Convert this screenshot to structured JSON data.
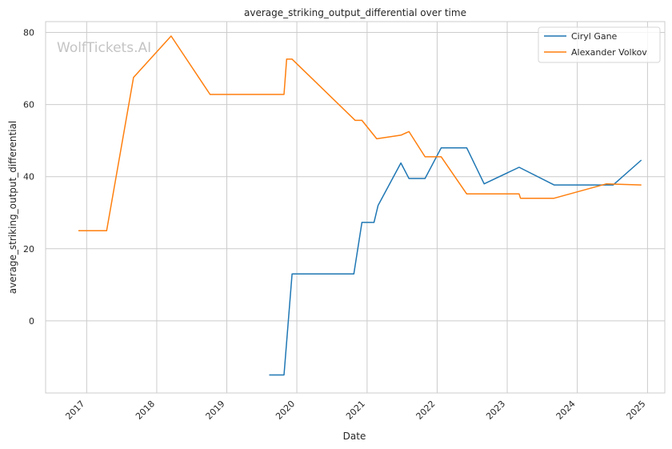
{
  "watermark": "WolfTickets.AI",
  "chart_data": {
    "type": "line",
    "title": "average_striking_output_differential over time",
    "xlabel": "Date",
    "ylabel": "average_striking_output_differential",
    "x_ticks": [
      "2017",
      "2018",
      "2019",
      "2020",
      "2021",
      "2022",
      "2023",
      "2024",
      "2025"
    ],
    "y_ticks": [
      0,
      20,
      40,
      60,
      80
    ],
    "xlim": [
      "2016-06-01",
      "2025-04-01"
    ],
    "ylim": [
      -20,
      83
    ],
    "grid": true,
    "legend_position": "top-right",
    "series": [
      {
        "name": "Ciryl Gane",
        "color": "#1f77b4",
        "points": [
          [
            "2019-08-10",
            -15
          ],
          [
            "2019-10-26",
            -15
          ],
          [
            "2019-12-07",
            13
          ],
          [
            "2020-10-24",
            13
          ],
          [
            "2020-12-05",
            27.3
          ],
          [
            "2021-02-06",
            27.3
          ],
          [
            "2021-02-27",
            32
          ],
          [
            "2021-06-26",
            43.8
          ],
          [
            "2021-08-07",
            39.5
          ],
          [
            "2021-10-30",
            39.5
          ],
          [
            "2022-01-22",
            48
          ],
          [
            "2022-06-04",
            48
          ],
          [
            "2022-09-03",
            38
          ],
          [
            "2023-03-04",
            42.6
          ],
          [
            "2023-09-02",
            37.7
          ],
          [
            "2024-07-06",
            37.7
          ],
          [
            "2024-11-30",
            44.6
          ]
        ]
      },
      {
        "name": "Alexander Volkov",
        "color": "#ff7f0e",
        "points": [
          [
            "2016-11-19",
            25
          ],
          [
            "2017-04-15",
            25
          ],
          [
            "2017-09-02",
            67.5
          ],
          [
            "2018-03-17",
            79
          ],
          [
            "2018-10-06",
            62.8
          ],
          [
            "2019-10-26",
            62.8
          ],
          [
            "2019-11-09",
            72.6
          ],
          [
            "2019-12-07",
            72.6
          ],
          [
            "2020-10-31",
            55.6
          ],
          [
            "2020-12-05",
            55.6
          ],
          [
            "2021-02-20",
            50.5
          ],
          [
            "2021-06-26",
            51.5
          ],
          [
            "2021-08-07",
            52.5
          ],
          [
            "2021-10-30",
            45.5
          ],
          [
            "2022-01-22",
            45.5
          ],
          [
            "2022-06-04",
            35.2
          ],
          [
            "2023-03-04",
            35.2
          ],
          [
            "2023-03-11",
            34
          ],
          [
            "2023-09-02",
            34
          ],
          [
            "2024-06-01",
            38
          ],
          [
            "2024-11-30",
            37.7
          ]
        ]
      }
    ]
  }
}
